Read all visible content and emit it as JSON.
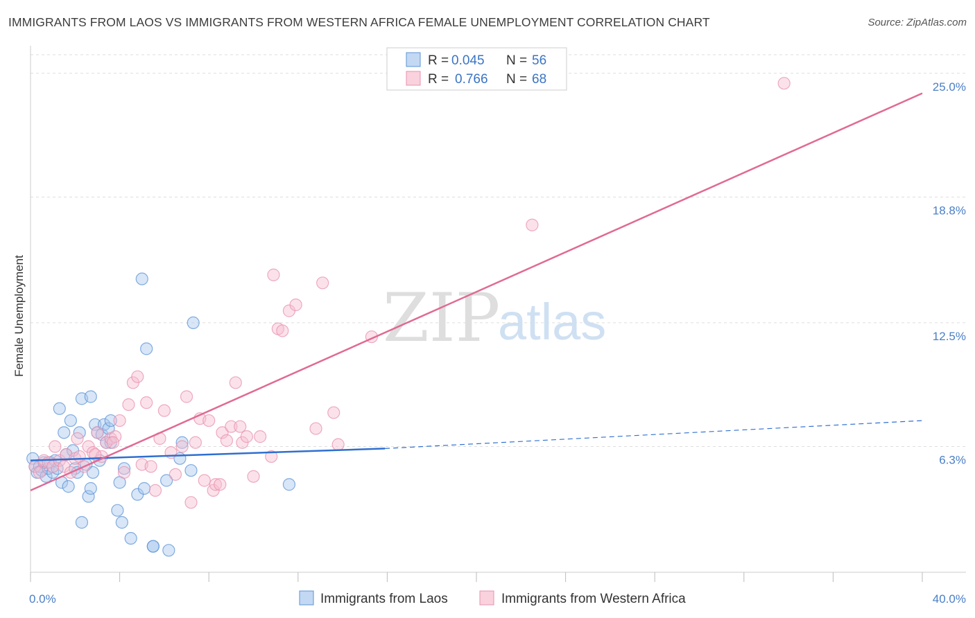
{
  "title": "IMMIGRANTS FROM LAOS VS IMMIGRANTS FROM WESTERN AFRICA FEMALE UNEMPLOYMENT CORRELATION CHART",
  "source": "Source: ZipAtlas.com",
  "watermark": {
    "zip": "ZIP",
    "atlas": "atlas"
  },
  "colors": {
    "laos_fill": "#a9c8ee",
    "laos_stroke": "#5b93d6",
    "laos_line": "#2e6fd0",
    "wa_fill": "#f6bfd0",
    "wa_stroke": "#e890ad",
    "wa_line": "#e06a94",
    "grid": "#dddddd",
    "tick_label": "#4a7fc7"
  },
  "legend": {
    "rows": [
      {
        "r_label": "R =",
        "r_value": "0.045",
        "n_label": "N =",
        "n_value": "56"
      },
      {
        "r_label": "R =",
        "r_value": "0.766",
        "n_label": "N =",
        "n_value": "68"
      }
    ]
  },
  "chart_data": {
    "type": "scatter",
    "title": "IMMIGRANTS FROM LAOS VS IMMIGRANTS FROM WESTERN AFRICA FEMALE UNEMPLOYMENT CORRELATION CHART",
    "xlabel": "",
    "ylabel": "Female Unemployment",
    "xlim": [
      0,
      40
    ],
    "ylim": [
      0,
      26
    ],
    "x_tick_labels": [
      {
        "value": 0,
        "label": "0.0%"
      },
      {
        "value": 40,
        "label": "40.0%"
      }
    ],
    "x_tick_marks": [
      0,
      4,
      8,
      12,
      16,
      20,
      24,
      28,
      32,
      36,
      40
    ],
    "y_ticks": [
      {
        "value": 6.3,
        "label": "6.3%"
      },
      {
        "value": 12.5,
        "label": "12.5%"
      },
      {
        "value": 18.8,
        "label": "18.8%"
      },
      {
        "value": 25.0,
        "label": "25.0%"
      }
    ],
    "grid": true,
    "series": [
      {
        "name": "Immigrants from Laos",
        "R": 0.045,
        "N": 56,
        "trend": {
          "x_start": 0,
          "y_start": 5.6,
          "x_solid_end": 15.9,
          "y_solid_end": 6.2,
          "x_dash_end": 40,
          "y_dash_end": 7.6
        },
        "points": [
          [
            0.1,
            5.7
          ],
          [
            0.2,
            5.3
          ],
          [
            0.3,
            5.0
          ],
          [
            0.4,
            5.3
          ],
          [
            0.5,
            5.1
          ],
          [
            0.6,
            5.5
          ],
          [
            0.7,
            4.8
          ],
          [
            0.8,
            5.2
          ],
          [
            0.9,
            5.5
          ],
          [
            1.0,
            5.0
          ],
          [
            1.1,
            5.6
          ],
          [
            1.2,
            5.2
          ],
          [
            1.3,
            8.2
          ],
          [
            1.4,
            4.5
          ],
          [
            1.5,
            7.0
          ],
          [
            1.6,
            5.9
          ],
          [
            1.7,
            4.3
          ],
          [
            1.8,
            7.6
          ],
          [
            1.9,
            6.1
          ],
          [
            2.0,
            5.2
          ],
          [
            2.1,
            5.0
          ],
          [
            2.2,
            7.0
          ],
          [
            2.3,
            2.5
          ],
          [
            2.3,
            8.7
          ],
          [
            2.5,
            5.4
          ],
          [
            2.6,
            3.8
          ],
          [
            2.7,
            4.2
          ],
          [
            2.7,
            8.8
          ],
          [
            2.8,
            5.0
          ],
          [
            2.9,
            7.4
          ],
          [
            3.0,
            7.0
          ],
          [
            3.1,
            5.6
          ],
          [
            3.2,
            6.9
          ],
          [
            3.3,
            7.4
          ],
          [
            3.4,
            6.5
          ],
          [
            3.5,
            7.2
          ],
          [
            3.6,
            7.6
          ],
          [
            3.6,
            6.5
          ],
          [
            3.9,
            3.1
          ],
          [
            4.0,
            4.5
          ],
          [
            4.1,
            2.5
          ],
          [
            4.2,
            5.2
          ],
          [
            4.5,
            1.7
          ],
          [
            4.8,
            3.9
          ],
          [
            5.0,
            14.7
          ],
          [
            5.1,
            4.2
          ],
          [
            5.2,
            11.2
          ],
          [
            5.5,
            1.3
          ],
          [
            6.1,
            4.6
          ],
          [
            6.2,
            1.1
          ],
          [
            6.7,
            5.7
          ],
          [
            6.8,
            6.5
          ],
          [
            7.2,
            5.1
          ],
          [
            7.3,
            12.5
          ],
          [
            11.6,
            4.4
          ],
          [
            5.5,
            1.3
          ]
        ]
      },
      {
        "name": "Immigrants from Western Africa",
        "R": 0.766,
        "N": 68,
        "trend": {
          "x_start": 0,
          "y_start": 4.1,
          "x_end": 40,
          "y_end": 24.0
        },
        "points": [
          [
            0.2,
            5.3
          ],
          [
            0.4,
            5.0
          ],
          [
            0.6,
            5.6
          ],
          [
            0.8,
            5.5
          ],
          [
            1.0,
            5.3
          ],
          [
            1.1,
            6.3
          ],
          [
            1.3,
            5.6
          ],
          [
            1.5,
            5.3
          ],
          [
            1.6,
            5.9
          ],
          [
            1.8,
            5.0
          ],
          [
            2.0,
            5.7
          ],
          [
            2.1,
            6.7
          ],
          [
            2.2,
            5.8
          ],
          [
            2.4,
            5.3
          ],
          [
            2.6,
            6.3
          ],
          [
            2.8,
            6.0
          ],
          [
            3.0,
            7.0
          ],
          [
            3.2,
            5.8
          ],
          [
            3.4,
            6.5
          ],
          [
            3.6,
            6.7
          ],
          [
            3.8,
            6.8
          ],
          [
            4.0,
            7.6
          ],
          [
            4.2,
            5.0
          ],
          [
            4.4,
            8.4
          ],
          [
            4.6,
            9.5
          ],
          [
            4.8,
            9.8
          ],
          [
            5.0,
            5.4
          ],
          [
            5.2,
            8.5
          ],
          [
            5.4,
            5.3
          ],
          [
            5.6,
            4.1
          ],
          [
            5.8,
            6.7
          ],
          [
            6.0,
            8.1
          ],
          [
            6.3,
            6.0
          ],
          [
            6.5,
            4.9
          ],
          [
            6.8,
            6.3
          ],
          [
            7.0,
            8.8
          ],
          [
            7.2,
            3.5
          ],
          [
            7.4,
            6.5
          ],
          [
            7.6,
            7.7
          ],
          [
            7.8,
            4.6
          ],
          [
            8.0,
            7.6
          ],
          [
            8.2,
            4.1
          ],
          [
            8.3,
            4.4
          ],
          [
            8.5,
            4.4
          ],
          [
            8.6,
            7.0
          ],
          [
            8.8,
            6.6
          ],
          [
            9.0,
            7.3
          ],
          [
            9.2,
            9.5
          ],
          [
            9.4,
            7.3
          ],
          [
            9.5,
            6.5
          ],
          [
            9.7,
            6.8
          ],
          [
            10.0,
            4.8
          ],
          [
            10.3,
            6.8
          ],
          [
            10.8,
            5.8
          ],
          [
            10.9,
            14.9
          ],
          [
            11.1,
            12.2
          ],
          [
            11.3,
            12.1
          ],
          [
            11.6,
            13.1
          ],
          [
            11.9,
            13.4
          ],
          [
            12.8,
            7.2
          ],
          [
            13.1,
            14.5
          ],
          [
            13.6,
            8.0
          ],
          [
            13.8,
            6.4
          ],
          [
            15.3,
            11.8
          ],
          [
            22.5,
            17.4
          ],
          [
            33.8,
            24.5
          ],
          [
            2.9,
            5.9
          ],
          [
            3.7,
            6.5
          ]
        ]
      }
    ],
    "legend_placement": "top-center"
  },
  "bottom_legend": [
    "Immigrants from Laos",
    "Immigrants from Western Africa"
  ]
}
